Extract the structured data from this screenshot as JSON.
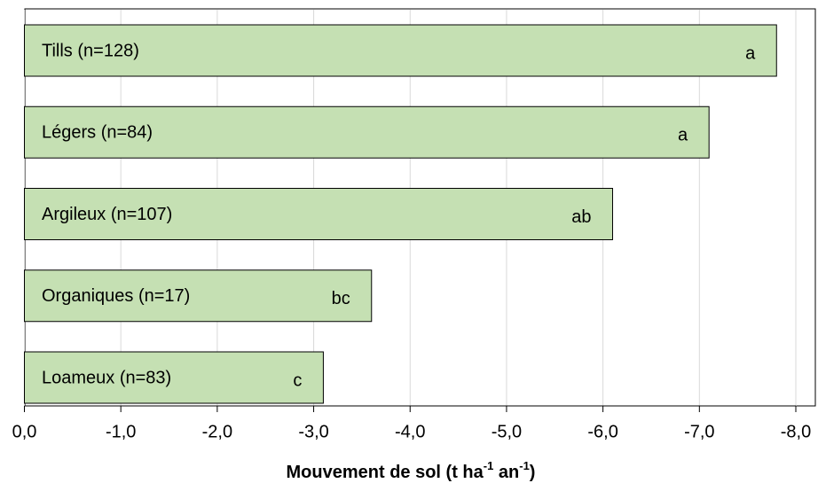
{
  "chart_data": {
    "type": "bar",
    "orientation": "horizontal",
    "categories": [
      "Tills (n=128)",
      "Légers (n=84)",
      "Argileux (n=107)",
      "Organiques (n=17)",
      "Loameux (n=83)"
    ],
    "values": [
      -7.8,
      -7.1,
      -6.1,
      -3.6,
      -3.1
    ],
    "annotations": [
      "a",
      "a",
      "ab",
      "bc",
      "c"
    ],
    "color": "#c5e0b3",
    "xlim": [
      0,
      -8
    ],
    "xticks": [
      {
        "value": 0,
        "label": "0,0"
      },
      {
        "value": -1,
        "label": "-1,0"
      },
      {
        "value": -2,
        "label": "-2,0"
      },
      {
        "value": -3,
        "label": "-3,0"
      },
      {
        "value": -4,
        "label": "-4,0"
      },
      {
        "value": -5,
        "label": "-5,0"
      },
      {
        "value": -6,
        "label": "-6,0"
      },
      {
        "value": -7,
        "label": "-7,0"
      },
      {
        "value": -8,
        "label": "-8,0"
      }
    ],
    "xlabel": [
      "Mouvement de sol (t ha",
      "-1",
      " an",
      "-1",
      ")"
    ],
    "grid": true
  }
}
